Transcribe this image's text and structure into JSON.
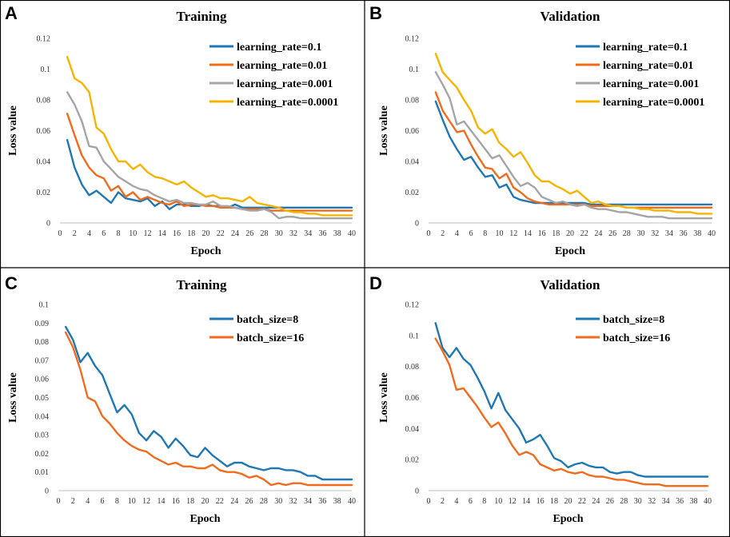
{
  "chart_data": [
    {
      "panel": "A",
      "type": "line",
      "title": "Training",
      "xlabel": "Epoch",
      "ylabel": "Loss value",
      "x": [
        1,
        2,
        3,
        4,
        5,
        6,
        7,
        8,
        9,
        10,
        11,
        12,
        13,
        14,
        15,
        16,
        17,
        18,
        19,
        20,
        21,
        22,
        23,
        24,
        25,
        26,
        27,
        28,
        29,
        30,
        31,
        32,
        33,
        34,
        35,
        36,
        37,
        38,
        39,
        40
      ],
      "xlim": [
        0,
        40
      ],
      "ylim": [
        0,
        0.12
      ],
      "xticks": [
        "0",
        "2",
        "4",
        "6",
        "8",
        "10",
        "12",
        "14",
        "16",
        "18",
        "20",
        "22",
        "24",
        "26",
        "28",
        "30",
        "32",
        "34",
        "36",
        "38",
        "40"
      ],
      "yticks": [
        "0",
        "0.02",
        "0.04",
        "0.06",
        "0.08",
        "0.1",
        "0.12"
      ],
      "legend_position": "top-right",
      "series": [
        {
          "name": "learning_rate=0.1",
          "color": "#1f77b4",
          "values": [
            0.054,
            0.036,
            0.025,
            0.018,
            0.021,
            0.017,
            0.013,
            0.02,
            0.016,
            0.015,
            0.014,
            0.016,
            0.011,
            0.014,
            0.009,
            0.012,
            0.012,
            0.011,
            0.011,
            0.012,
            0.011,
            0.011,
            0.01,
            0.012,
            0.01,
            0.01,
            0.01,
            0.01,
            0.01,
            0.01,
            0.01,
            0.01,
            0.01,
            0.01,
            0.01,
            0.01,
            0.01,
            0.01,
            0.01,
            0.01
          ]
        },
        {
          "name": "learning_rate=0.01",
          "color": "#f26b1d",
          "values": [
            0.071,
            0.057,
            0.044,
            0.036,
            0.031,
            0.029,
            0.021,
            0.024,
            0.017,
            0.02,
            0.015,
            0.017,
            0.015,
            0.013,
            0.012,
            0.014,
            0.011,
            0.012,
            0.012,
            0.011,
            0.011,
            0.01,
            0.01,
            0.01,
            0.009,
            0.009,
            0.009,
            0.009,
            0.008,
            0.008,
            0.008,
            0.008,
            0.008,
            0.008,
            0.008,
            0.008,
            0.008,
            0.008,
            0.008,
            0.008
          ]
        },
        {
          "name": "learning_rate=0.001",
          "color": "#a5a5a5",
          "values": [
            0.085,
            0.077,
            0.066,
            0.05,
            0.049,
            0.04,
            0.035,
            0.03,
            0.027,
            0.024,
            0.022,
            0.021,
            0.018,
            0.016,
            0.014,
            0.015,
            0.013,
            0.013,
            0.012,
            0.012,
            0.014,
            0.011,
            0.011,
            0.01,
            0.009,
            0.008,
            0.008,
            0.009,
            0.007,
            0.003,
            0.004,
            0.004,
            0.003,
            0.003,
            0.003,
            0.003,
            0.003,
            0.003,
            0.003,
            0.003
          ]
        },
        {
          "name": "learning_rate=0.0001",
          "color": "#f5b400",
          "values": [
            0.108,
            0.094,
            0.091,
            0.085,
            0.062,
            0.058,
            0.048,
            0.04,
            0.04,
            0.035,
            0.038,
            0.033,
            0.03,
            0.029,
            0.027,
            0.025,
            0.027,
            0.023,
            0.02,
            0.017,
            0.018,
            0.016,
            0.016,
            0.015,
            0.014,
            0.017,
            0.013,
            0.012,
            0.011,
            0.01,
            0.008,
            0.007,
            0.007,
            0.006,
            0.006,
            0.005,
            0.005,
            0.005,
            0.005,
            0.005
          ]
        }
      ]
    },
    {
      "panel": "B",
      "type": "line",
      "title": "Validation",
      "xlabel": "Epoch",
      "ylabel": "Loss value",
      "x": [
        1,
        2,
        3,
        4,
        5,
        6,
        7,
        8,
        9,
        10,
        11,
        12,
        13,
        14,
        15,
        16,
        17,
        18,
        19,
        20,
        21,
        22,
        23,
        24,
        25,
        26,
        27,
        28,
        29,
        30,
        31,
        32,
        33,
        34,
        35,
        36,
        37,
        38,
        39,
        40
      ],
      "xlim": [
        0,
        40
      ],
      "ylim": [
        0,
        0.12
      ],
      "xticks": [
        "0",
        "2",
        "4",
        "6",
        "8",
        "10",
        "12",
        "14",
        "16",
        "18",
        "20",
        "22",
        "24",
        "26",
        "28",
        "30",
        "32",
        "34",
        "36",
        "38",
        "40"
      ],
      "yticks": [
        "0",
        "0.02",
        "0.04",
        "0.06",
        "0.08",
        "0.1",
        "0.12"
      ],
      "legend_position": "top-right",
      "series": [
        {
          "name": "learning_rate=0.1",
          "color": "#1f77b4",
          "values": [
            0.079,
            0.067,
            0.056,
            0.048,
            0.041,
            0.043,
            0.036,
            0.03,
            0.031,
            0.023,
            0.025,
            0.017,
            0.015,
            0.014,
            0.013,
            0.013,
            0.013,
            0.013,
            0.013,
            0.013,
            0.013,
            0.013,
            0.012,
            0.012,
            0.012,
            0.012,
            0.012,
            0.012,
            0.012,
            0.012,
            0.012,
            0.012,
            0.012,
            0.012,
            0.012,
            0.012,
            0.012,
            0.012,
            0.012,
            0.012
          ]
        },
        {
          "name": "learning_rate=0.01",
          "color": "#f26b1d",
          "values": [
            0.085,
            0.073,
            0.066,
            0.059,
            0.06,
            0.051,
            0.043,
            0.036,
            0.035,
            0.029,
            0.032,
            0.023,
            0.02,
            0.016,
            0.014,
            0.013,
            0.012,
            0.012,
            0.012,
            0.012,
            0.012,
            0.012,
            0.011,
            0.011,
            0.011,
            0.011,
            0.011,
            0.01,
            0.01,
            0.01,
            0.01,
            0.01,
            0.01,
            0.01,
            0.01,
            0.01,
            0.01,
            0.01,
            0.01,
            0.01
          ]
        },
        {
          "name": "learning_rate=0.001",
          "color": "#a5a5a5",
          "values": [
            0.098,
            0.09,
            0.081,
            0.064,
            0.066,
            0.06,
            0.054,
            0.048,
            0.042,
            0.044,
            0.037,
            0.03,
            0.024,
            0.026,
            0.023,
            0.017,
            0.015,
            0.013,
            0.014,
            0.012,
            0.011,
            0.012,
            0.01,
            0.009,
            0.009,
            0.008,
            0.007,
            0.007,
            0.006,
            0.005,
            0.004,
            0.004,
            0.004,
            0.003,
            0.003,
            0.003,
            0.003,
            0.003,
            0.003,
            0.003
          ]
        },
        {
          "name": "learning_rate=0.0001",
          "color": "#f5b400",
          "values": [
            0.11,
            0.098,
            0.093,
            0.088,
            0.08,
            0.073,
            0.062,
            0.058,
            0.061,
            0.052,
            0.048,
            0.043,
            0.046,
            0.039,
            0.031,
            0.027,
            0.027,
            0.024,
            0.022,
            0.019,
            0.021,
            0.017,
            0.013,
            0.014,
            0.012,
            0.011,
            0.011,
            0.01,
            0.01,
            0.009,
            0.009,
            0.008,
            0.008,
            0.008,
            0.007,
            0.007,
            0.007,
            0.006,
            0.006,
            0.006
          ]
        }
      ]
    },
    {
      "panel": "C",
      "type": "line",
      "title": "Training",
      "xlabel": "Epoch",
      "ylabel": "Loss value",
      "x": [
        1,
        2,
        3,
        4,
        5,
        6,
        7,
        8,
        9,
        10,
        11,
        12,
        13,
        14,
        15,
        16,
        17,
        18,
        19,
        20,
        21,
        22,
        23,
        24,
        25,
        26,
        27,
        28,
        29,
        30,
        31,
        32,
        33,
        34,
        35,
        36,
        37,
        38,
        39,
        40
      ],
      "xlim": [
        0,
        40
      ],
      "ylim": [
        0,
        0.1
      ],
      "xticks": [
        "0",
        "2",
        "4",
        "6",
        "8",
        "10",
        "12",
        "14",
        "16",
        "18",
        "20",
        "22",
        "24",
        "26",
        "28",
        "30",
        "32",
        "34",
        "36",
        "38",
        "40"
      ],
      "yticks": [
        "0",
        "0.01",
        "0.02",
        "0.03",
        "0.04",
        "0.05",
        "0.06",
        "0.07",
        "0.08",
        "0.09",
        "0.1"
      ],
      "legend_position": "top-right",
      "series": [
        {
          "name": "batch_size=8",
          "color": "#1f77b4",
          "values": [
            0.088,
            0.081,
            0.069,
            0.074,
            0.067,
            0.062,
            0.052,
            0.042,
            0.046,
            0.041,
            0.031,
            0.027,
            0.032,
            0.029,
            0.023,
            0.028,
            0.024,
            0.019,
            0.018,
            0.023,
            0.019,
            0.016,
            0.013,
            0.015,
            0.015,
            0.013,
            0.012,
            0.011,
            0.012,
            0.012,
            0.011,
            0.011,
            0.01,
            0.008,
            0.008,
            0.006,
            0.006,
            0.006,
            0.006,
            0.006
          ]
        },
        {
          "name": "batch_size=16",
          "color": "#f26b1d",
          "values": [
            0.085,
            0.077,
            0.065,
            0.05,
            0.048,
            0.04,
            0.036,
            0.031,
            0.027,
            0.024,
            0.022,
            0.021,
            0.018,
            0.016,
            0.014,
            0.015,
            0.013,
            0.013,
            0.012,
            0.012,
            0.014,
            0.011,
            0.01,
            0.01,
            0.009,
            0.007,
            0.008,
            0.006,
            0.003,
            0.004,
            0.003,
            0.004,
            0.004,
            0.003,
            0.003,
            0.003,
            0.003,
            0.003,
            0.003,
            0.003
          ]
        }
      ]
    },
    {
      "panel": "D",
      "type": "line",
      "title": "Validation",
      "xlabel": "Epoch",
      "ylabel": "Loss value",
      "x": [
        1,
        2,
        3,
        4,
        5,
        6,
        7,
        8,
        9,
        10,
        11,
        12,
        13,
        14,
        15,
        16,
        17,
        18,
        19,
        20,
        21,
        22,
        23,
        24,
        25,
        26,
        27,
        28,
        29,
        30,
        31,
        32,
        33,
        34,
        35,
        36,
        37,
        38,
        39,
        40
      ],
      "xlim": [
        0,
        40
      ],
      "ylim": [
        0,
        0.12
      ],
      "xticks": [
        "0",
        "2",
        "4",
        "6",
        "8",
        "10",
        "12",
        "14",
        "16",
        "18",
        "20",
        "22",
        "24",
        "26",
        "28",
        "30",
        "32",
        "34",
        "36",
        "38",
        "40"
      ],
      "yticks": [
        "0",
        "0.02",
        "0.04",
        "0.06",
        "0.08",
        "0.1",
        "0.12"
      ],
      "legend_position": "top-right",
      "series": [
        {
          "name": "batch_size=8",
          "color": "#1f77b4",
          "values": [
            0.108,
            0.092,
            0.086,
            0.092,
            0.085,
            0.081,
            0.073,
            0.064,
            0.053,
            0.063,
            0.052,
            0.046,
            0.04,
            0.031,
            0.033,
            0.036,
            0.029,
            0.021,
            0.019,
            0.015,
            0.017,
            0.018,
            0.016,
            0.015,
            0.015,
            0.012,
            0.011,
            0.012,
            0.012,
            0.01,
            0.009,
            0.009,
            0.009,
            0.009,
            0.009,
            0.009,
            0.009,
            0.009,
            0.009,
            0.009
          ]
        },
        {
          "name": "batch_size=16",
          "color": "#f26b1d",
          "values": [
            0.098,
            0.09,
            0.081,
            0.065,
            0.066,
            0.06,
            0.054,
            0.047,
            0.041,
            0.044,
            0.037,
            0.029,
            0.023,
            0.025,
            0.023,
            0.017,
            0.015,
            0.013,
            0.014,
            0.012,
            0.011,
            0.012,
            0.01,
            0.009,
            0.009,
            0.008,
            0.007,
            0.007,
            0.006,
            0.005,
            0.004,
            0.004,
            0.004,
            0.003,
            0.003,
            0.003,
            0.003,
            0.003,
            0.003,
            0.003
          ]
        }
      ]
    }
  ]
}
